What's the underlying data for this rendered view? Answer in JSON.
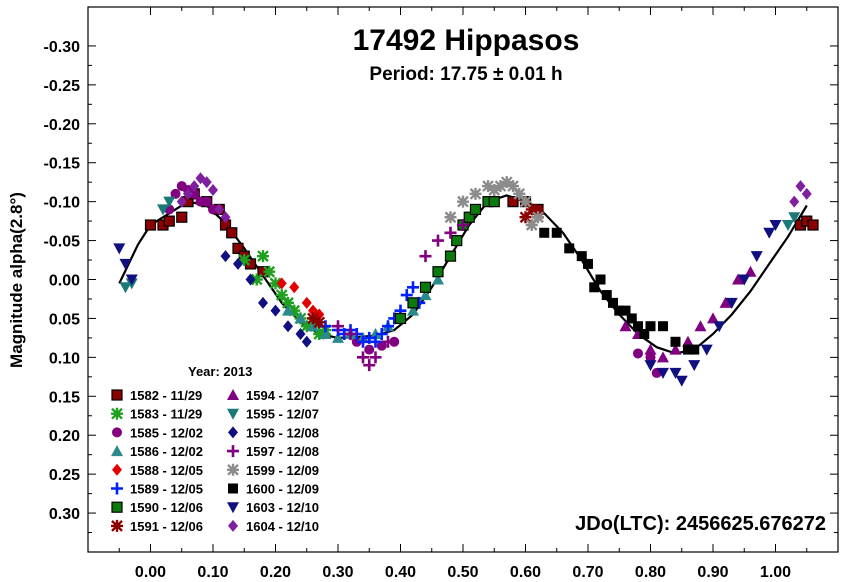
{
  "chart_data": {
    "type": "scatter",
    "title": "17492 Hippasos",
    "subtitle": "Period: 17.75 ± 0.01 h",
    "ylabel": "Magnitude alpha(2.8°)",
    "xlabel": "",
    "xlim": [
      -0.1,
      1.1
    ],
    "ylim": [
      0.35,
      -0.35
    ],
    "y_inverted": true,
    "x_ticks": [
      "0.00",
      "0.10",
      "0.20",
      "0.30",
      "0.40",
      "0.50",
      "0.60",
      "0.70",
      "0.80",
      "0.90",
      "1.00"
    ],
    "y_ticks": [
      "-0.30",
      "-0.25",
      "-0.20",
      "-0.15",
      "-0.10",
      "-0.05",
      "0.00",
      "0.05",
      "0.10",
      "0.15",
      "0.20",
      "0.25",
      "0.30"
    ],
    "legend_title": "Year: 2013",
    "legend_placement": "bottom-left",
    "annotation": "JDo(LTC): 2456625.676272",
    "fit_curve": [
      [
        -0.05,
        0.005
      ],
      [
        -0.02,
        -0.045
      ],
      [
        0.0,
        -0.07
      ],
      [
        0.03,
        -0.085
      ],
      [
        0.06,
        -0.1
      ],
      [
        0.09,
        -0.095
      ],
      [
        0.12,
        -0.072
      ],
      [
        0.15,
        -0.04
      ],
      [
        0.18,
        -0.005
      ],
      [
        0.21,
        0.03
      ],
      [
        0.24,
        0.055
      ],
      [
        0.27,
        0.07
      ],
      [
        0.3,
        0.075
      ],
      [
        0.33,
        0.074
      ],
      [
        0.36,
        0.072
      ],
      [
        0.39,
        0.065
      ],
      [
        0.42,
        0.045
      ],
      [
        0.45,
        0.01
      ],
      [
        0.48,
        -0.03
      ],
      [
        0.51,
        -0.07
      ],
      [
        0.54,
        -0.1
      ],
      [
        0.57,
        -0.108
      ],
      [
        0.6,
        -0.1
      ],
      [
        0.63,
        -0.085
      ],
      [
        0.66,
        -0.06
      ],
      [
        0.69,
        -0.025
      ],
      [
        0.72,
        0.015
      ],
      [
        0.75,
        0.045
      ],
      [
        0.78,
        0.07
      ],
      [
        0.81,
        0.087
      ],
      [
        0.84,
        0.095
      ],
      [
        0.87,
        0.09
      ],
      [
        0.9,
        0.07
      ],
      [
        0.93,
        0.045
      ],
      [
        0.96,
        0.015
      ],
      [
        0.99,
        -0.02
      ],
      [
        1.02,
        -0.055
      ],
      [
        1.05,
        -0.095
      ]
    ],
    "series": [
      {
        "name": "1582 - 11/29",
        "color": "#8b0000",
        "symbol": "square-dark",
        "points": [
          [
            0.0,
            -0.07
          ],
          [
            0.02,
            -0.07
          ],
          [
            0.03,
            -0.075
          ],
          [
            0.05,
            -0.08
          ],
          [
            0.06,
            -0.1
          ],
          [
            0.07,
            -0.11
          ],
          [
            0.09,
            -0.1
          ],
          [
            0.11,
            -0.09
          ],
          [
            0.12,
            -0.07
          ],
          [
            0.13,
            -0.06
          ],
          [
            0.14,
            -0.04
          ],
          [
            0.15,
            -0.03
          ],
          [
            0.16,
            -0.02
          ],
          [
            0.18,
            -0.01
          ],
          [
            0.58,
            -0.1
          ],
          [
            0.6,
            -0.1
          ],
          [
            0.62,
            -0.09
          ],
          [
            1.04,
            -0.07
          ],
          [
            1.05,
            -0.075
          ],
          [
            1.06,
            -0.07
          ]
        ]
      },
      {
        "name": "1583 - 11/29",
        "color": "#1fa01f",
        "symbol": "star",
        "points": [
          [
            0.15,
            -0.025
          ],
          [
            0.17,
            0.0
          ],
          [
            0.18,
            -0.03
          ],
          [
            0.19,
            -0.01
          ],
          [
            0.2,
            0.005
          ],
          [
            0.21,
            0.02
          ],
          [
            0.22,
            0.03
          ],
          [
            0.23,
            0.04
          ],
          [
            0.24,
            0.05
          ],
          [
            0.25,
            0.06
          ],
          [
            0.26,
            0.055
          ],
          [
            0.27,
            0.07
          ],
          [
            0.28,
            0.065
          ]
        ]
      },
      {
        "name": "1585 - 12/02",
        "color": "#800080",
        "symbol": "circle",
        "points": [
          [
            0.03,
            -0.09
          ],
          [
            0.04,
            -0.11
          ],
          [
            0.05,
            -0.12
          ],
          [
            0.06,
            -0.115
          ],
          [
            0.07,
            -0.11
          ],
          [
            0.08,
            -0.1
          ],
          [
            0.09,
            -0.1
          ],
          [
            0.1,
            -0.09
          ],
          [
            0.33,
            0.08
          ],
          [
            0.35,
            0.09
          ],
          [
            0.37,
            0.085
          ],
          [
            0.39,
            0.08
          ],
          [
            0.78,
            0.095
          ],
          [
            0.8,
            0.1
          ],
          [
            0.81,
            0.12
          ]
        ]
      },
      {
        "name": "1586 - 12/02",
        "color": "#2a8a8a",
        "symbol": "triangle-up",
        "points": [
          [
            0.22,
            0.04
          ],
          [
            0.24,
            0.05
          ],
          [
            0.26,
            0.06
          ],
          [
            0.28,
            0.07
          ],
          [
            0.3,
            0.075
          ],
          [
            0.32,
            0.07
          ],
          [
            0.34,
            0.075
          ],
          [
            0.36,
            0.07
          ],
          [
            0.38,
            0.06
          ],
          [
            0.4,
            0.05
          ],
          [
            0.42,
            0.04
          ],
          [
            0.44,
            0.02
          ],
          [
            0.46,
            0.0
          ],
          [
            0.48,
            -0.03
          ]
        ]
      },
      {
        "name": "1588 - 12/05",
        "color": "#e00000",
        "symbol": "diamond",
        "points": [
          [
            0.21,
            0.005
          ],
          [
            0.23,
            0.01
          ],
          [
            0.25,
            0.03
          ],
          [
            0.26,
            0.04
          ],
          [
            0.27,
            0.045
          ]
        ]
      },
      {
        "name": "1589 - 12/05",
        "color": "#0020ff",
        "symbol": "plus",
        "points": [
          [
            0.28,
            0.06
          ],
          [
            0.3,
            0.065
          ],
          [
            0.31,
            0.07
          ],
          [
            0.32,
            0.065
          ],
          [
            0.33,
            0.07
          ],
          [
            0.34,
            0.08
          ],
          [
            0.35,
            0.075
          ],
          [
            0.36,
            0.08
          ],
          [
            0.37,
            0.07
          ],
          [
            0.38,
            0.06
          ],
          [
            0.39,
            0.05
          ],
          [
            0.4,
            0.04
          ],
          [
            0.41,
            0.02
          ],
          [
            0.42,
            0.01
          ],
          [
            0.43,
            0.03
          ]
        ]
      },
      {
        "name": "1590 - 12/06",
        "color": "#0a7a0a",
        "symbol": "square-green",
        "points": [
          [
            0.4,
            0.05
          ],
          [
            0.42,
            0.03
          ],
          [
            0.44,
            0.01
          ],
          [
            0.46,
            -0.01
          ],
          [
            0.48,
            -0.03
          ],
          [
            0.49,
            -0.05
          ],
          [
            0.5,
            -0.07
          ],
          [
            0.51,
            -0.08
          ],
          [
            0.52,
            -0.09
          ],
          [
            0.54,
            -0.1
          ],
          [
            0.55,
            -0.1
          ]
        ]
      },
      {
        "name": "1591 - 12/06",
        "color": "#8b0000",
        "symbol": "asterisk",
        "points": [
          [
            0.26,
            0.05
          ],
          [
            0.27,
            0.055
          ],
          [
            0.6,
            -0.08
          ],
          [
            0.61,
            -0.09
          ],
          [
            0.62,
            -0.085
          ]
        ]
      },
      {
        "name": "1594 - 12/07",
        "color": "#800080",
        "symbol": "triangle-up",
        "points": [
          [
            0.76,
            0.06
          ],
          [
            0.78,
            0.07
          ],
          [
            0.8,
            0.09
          ],
          [
            0.82,
            0.1
          ],
          [
            0.84,
            0.09
          ],
          [
            0.86,
            0.08
          ],
          [
            0.88,
            0.06
          ],
          [
            0.9,
            0.05
          ],
          [
            0.92,
            0.03
          ],
          [
            0.94,
            0.0
          ],
          [
            0.96,
            -0.01
          ]
        ]
      },
      {
        "name": "1595 - 12/07",
        "color": "#1a7a7a",
        "symbol": "triangle-down",
        "points": [
          [
            -0.04,
            0.01
          ],
          [
            -0.03,
            0.005
          ],
          [
            0.02,
            -0.09
          ],
          [
            0.03,
            -0.1
          ],
          [
            1.02,
            -0.07
          ],
          [
            1.03,
            -0.08
          ]
        ]
      },
      {
        "name": "1596 - 12/08",
        "color": "#101080",
        "symbol": "diamond",
        "points": [
          [
            0.12,
            -0.03
          ],
          [
            0.14,
            -0.02
          ],
          [
            0.16,
            0.0
          ],
          [
            0.18,
            0.03
          ],
          [
            0.2,
            0.04
          ],
          [
            0.22,
            0.06
          ],
          [
            0.24,
            0.07
          ],
          [
            0.25,
            0.08
          ]
        ]
      },
      {
        "name": "1597 - 12/08",
        "color": "#800080",
        "symbol": "plus",
        "points": [
          [
            0.3,
            0.06
          ],
          [
            0.32,
            0.07
          ],
          [
            0.34,
            0.1
          ],
          [
            0.35,
            0.11
          ],
          [
            0.36,
            0.1
          ],
          [
            0.38,
            0.08
          ],
          [
            0.44,
            -0.03
          ],
          [
            0.46,
            -0.05
          ],
          [
            0.48,
            -0.06
          ],
          [
            0.5,
            -0.07
          ]
        ]
      },
      {
        "name": "1599 - 12/09",
        "color": "#8c8c8c",
        "symbol": "asterisk",
        "points": [
          [
            0.48,
            -0.08
          ],
          [
            0.5,
            -0.1
          ],
          [
            0.52,
            -0.11
          ],
          [
            0.54,
            -0.12
          ],
          [
            0.55,
            -0.115
          ],
          [
            0.56,
            -0.12
          ],
          [
            0.57,
            -0.125
          ],
          [
            0.58,
            -0.12
          ],
          [
            0.59,
            -0.11
          ],
          [
            0.6,
            -0.1
          ],
          [
            0.61,
            -0.07
          ],
          [
            0.62,
            -0.08
          ]
        ]
      },
      {
        "name": "1600 - 12/09",
        "color": "#000000",
        "symbol": "square-black",
        "points": [
          [
            0.63,
            -0.06
          ],
          [
            0.65,
            -0.06
          ],
          [
            0.67,
            -0.04
          ],
          [
            0.69,
            -0.03
          ],
          [
            0.7,
            -0.02
          ],
          [
            0.71,
            0.01
          ],
          [
            0.72,
            0.0
          ],
          [
            0.73,
            0.02
          ],
          [
            0.74,
            0.03
          ],
          [
            0.75,
            0.04
          ],
          [
            0.76,
            0.04
          ],
          [
            0.77,
            0.05
          ],
          [
            0.78,
            0.06
          ],
          [
            0.79,
            0.07
          ],
          [
            0.8,
            0.06
          ],
          [
            0.82,
            0.06
          ],
          [
            0.84,
            0.08
          ],
          [
            0.86,
            0.09
          ],
          [
            0.87,
            0.09
          ]
        ]
      },
      {
        "name": "1603 - 12/10",
        "color": "#101080",
        "symbol": "triangle-down",
        "points": [
          [
            -0.05,
            -0.04
          ],
          [
            -0.04,
            -0.02
          ],
          [
            -0.03,
            0.0
          ],
          [
            0.8,
            0.11
          ],
          [
            0.82,
            0.12
          ],
          [
            0.84,
            0.12
          ],
          [
            0.85,
            0.13
          ],
          [
            0.87,
            0.11
          ],
          [
            0.89,
            0.09
          ],
          [
            0.91,
            0.06
          ],
          [
            0.93,
            0.03
          ],
          [
            0.95,
            0.0
          ],
          [
            0.97,
            -0.03
          ],
          [
            0.99,
            -0.06
          ],
          [
            1.0,
            -0.07
          ]
        ]
      },
      {
        "name": "1604 - 12/10",
        "color": "#8020a0",
        "symbol": "diamond",
        "points": [
          [
            0.05,
            -0.1
          ],
          [
            0.06,
            -0.11
          ],
          [
            0.07,
            -0.12
          ],
          [
            0.08,
            -0.13
          ],
          [
            0.09,
            -0.125
          ],
          [
            0.1,
            -0.115
          ],
          [
            0.11,
            -0.09
          ],
          [
            0.12,
            -0.08
          ],
          [
            1.03,
            -0.1
          ],
          [
            1.04,
            -0.12
          ],
          [
            1.05,
            -0.11
          ]
        ]
      }
    ]
  }
}
